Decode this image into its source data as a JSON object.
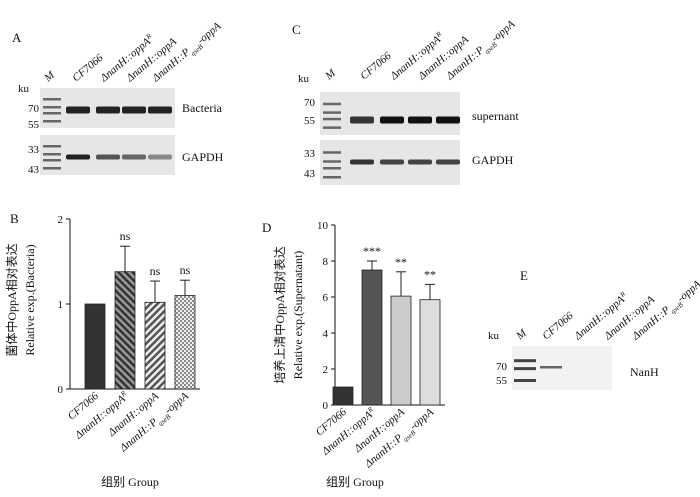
{
  "panels": {
    "A": {
      "label": "A",
      "lanes": [
        [
          {
            "t": "M"
          }
        ],
        [
          {
            "t": "CF7066"
          }
        ],
        [
          {
            "t": "ΔnanH::oppA"
          },
          {
            "sup": "R"
          }
        ],
        [
          {
            "t": "ΔnanH::oppA"
          }
        ],
        [
          {
            "t": "ΔnanH::P"
          },
          {
            "sub": "qseB"
          },
          {
            "t": "-oppA"
          }
        ]
      ],
      "unit": "ku",
      "markers_top": [
        "70",
        "55"
      ],
      "markers_bottom": [
        "33",
        "43"
      ],
      "blot_top": "Bacteria",
      "blot_bottom": "GAPDH"
    },
    "C": {
      "label": "C",
      "lanes": [
        [
          {
            "t": "M"
          }
        ],
        [
          {
            "t": "CF7066"
          }
        ],
        [
          {
            "t": "ΔnanH::oppA"
          },
          {
            "sup": "R"
          }
        ],
        [
          {
            "t": "ΔnanH::oppA"
          }
        ],
        [
          {
            "t": "ΔnanH::P"
          },
          {
            "sub": "qseB"
          },
          {
            "t": "-oppA"
          }
        ]
      ],
      "unit": "ku",
      "markers_top": [
        "70",
        "55"
      ],
      "markers_bottom": [
        "33",
        "43"
      ],
      "blot_top": "supernant",
      "blot_bottom": "GAPDH"
    },
    "E": {
      "label": "E",
      "lanes": [
        [
          {
            "t": "M"
          }
        ],
        [
          {
            "t": "CF7066"
          }
        ],
        [
          {
            "t": "ΔnanH::oppA"
          },
          {
            "sup": "R"
          }
        ],
        [
          {
            "t": "ΔnanH::oppA"
          }
        ],
        [
          {
            "t": "ΔnanH::P"
          },
          {
            "sub": "qseB"
          },
          {
            "t": "-oppA"
          }
        ]
      ],
      "unit": "ku",
      "markers_top": [
        "70",
        "55"
      ],
      "blot_top": "NanH"
    }
  },
  "chart_data": [
    {
      "type": "bar",
      "label": "B",
      "ylabel": [
        "菌体中OppA相对表达",
        "Relative exp.(Bacteria)"
      ],
      "xlabel": "组别 Group",
      "categories": [
        [
          {
            "t": "CF7066"
          }
        ],
        [
          {
            "t": "ΔnanH::oppA"
          },
          {
            "sup": "R"
          }
        ],
        [
          {
            "t": "ΔnanH::oppA"
          }
        ],
        [
          {
            "t": "ΔnanH::P"
          },
          {
            "sub": "qseB"
          },
          {
            "t": "-oppA"
          }
        ]
      ],
      "values": [
        1.0,
        1.38,
        1.02,
        1.1
      ],
      "errors": [
        0,
        0.3,
        0.25,
        0.18
      ],
      "annotations": [
        null,
        "ns",
        "ns",
        "ns"
      ],
      "colors": [
        "#333333",
        "#555555",
        "#777777",
        "#bbbbbb"
      ],
      "ylim": [
        0,
        2
      ],
      "yticks": [
        0,
        1,
        2
      ]
    },
    {
      "type": "bar",
      "label": "D",
      "ylabel": [
        "培养上清中OppA相对表达",
        "Relative exp.(Supernatant)"
      ],
      "xlabel": "组别 Group",
      "categories": [
        [
          {
            "t": "CF7066"
          }
        ],
        [
          {
            "t": "ΔnanH::oppA"
          },
          {
            "sup": "R"
          }
        ],
        [
          {
            "t": "ΔnanH::oppA"
          }
        ],
        [
          {
            "t": "ΔnanH::P"
          },
          {
            "sub": "qseB"
          },
          {
            "t": "-oppA"
          }
        ]
      ],
      "values": [
        1.0,
        7.5,
        6.05,
        5.85
      ],
      "errors": [
        0,
        0.5,
        1.35,
        0.85
      ],
      "annotations": [
        null,
        "***",
        "**",
        "**"
      ],
      "colors": [
        "#333333",
        "#555555",
        "#cccccc",
        "#dddddd"
      ],
      "ylim": [
        0,
        10
      ],
      "yticks": [
        0,
        2,
        4,
        6,
        8,
        10
      ]
    }
  ]
}
